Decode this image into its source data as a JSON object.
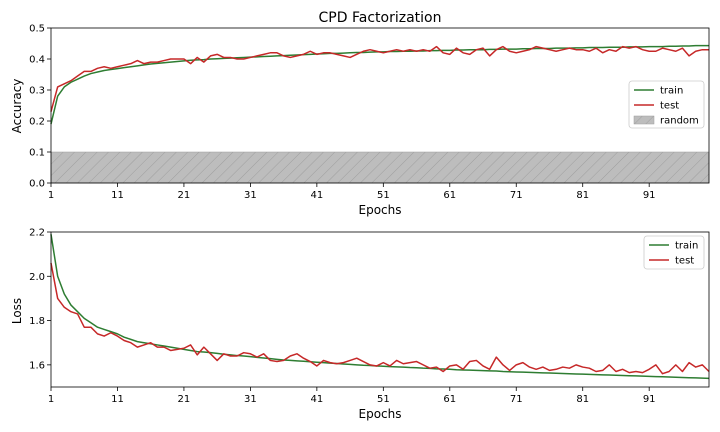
{
  "chart_data": [
    {
      "type": "line",
      "title": "CPD Factorization",
      "xlabel": "Epochs",
      "ylabel": "Accuracy",
      "xlim": [
        1,
        100
      ],
      "ylim": [
        0,
        0.5
      ],
      "xticks": [
        1,
        11,
        21,
        31,
        41,
        51,
        61,
        71,
        81,
        91
      ],
      "yticks": [
        0.0,
        0.1,
        0.2,
        0.3,
        0.4,
        0.5
      ],
      "ytick_labels": [
        "0.0",
        "0.1",
        "0.2",
        "0.3",
        "0.4",
        "0.5"
      ],
      "grid": false,
      "legend_position": "center-right",
      "x": [
        1,
        2,
        3,
        4,
        5,
        6,
        7,
        8,
        9,
        10,
        11,
        12,
        13,
        14,
        15,
        16,
        17,
        18,
        19,
        20,
        21,
        22,
        23,
        24,
        25,
        26,
        27,
        28,
        29,
        30,
        31,
        32,
        33,
        34,
        35,
        36,
        37,
        38,
        39,
        40,
        41,
        42,
        43,
        44,
        45,
        46,
        47,
        48,
        49,
        50,
        51,
        52,
        53,
        54,
        55,
        56,
        57,
        58,
        59,
        60,
        61,
        62,
        63,
        64,
        65,
        66,
        67,
        68,
        69,
        70,
        71,
        72,
        73,
        74,
        75,
        76,
        77,
        78,
        79,
        80,
        81,
        82,
        83,
        84,
        85,
        86,
        87,
        88,
        89,
        90,
        91,
        92,
        93,
        94,
        95,
        96,
        97,
        98,
        99,
        100
      ],
      "series": [
        {
          "name": "train",
          "color": "#2e7d32",
          "values": [
            0.19,
            0.28,
            0.31,
            0.325,
            0.335,
            0.345,
            0.353,
            0.358,
            0.363,
            0.366,
            0.369,
            0.372,
            0.375,
            0.378,
            0.381,
            0.384,
            0.386,
            0.388,
            0.39,
            0.392,
            0.394,
            0.396,
            0.397,
            0.398,
            0.4,
            0.401,
            0.402,
            0.403,
            0.404,
            0.405,
            0.406,
            0.407,
            0.408,
            0.409,
            0.41,
            0.411,
            0.412,
            0.413,
            0.414,
            0.415,
            0.416,
            0.417,
            0.418,
            0.418,
            0.419,
            0.42,
            0.421,
            0.421,
            0.422,
            0.423,
            0.423,
            0.424,
            0.424,
            0.425,
            0.425,
            0.426,
            0.426,
            0.427,
            0.427,
            0.428,
            0.428,
            0.429,
            0.429,
            0.43,
            0.43,
            0.43,
            0.431,
            0.431,
            0.432,
            0.432,
            0.432,
            0.433,
            0.433,
            0.434,
            0.434,
            0.434,
            0.435,
            0.435,
            0.435,
            0.436,
            0.436,
            0.437,
            0.437,
            0.437,
            0.438,
            0.438,
            0.438,
            0.439,
            0.439,
            0.439,
            0.44,
            0.44,
            0.44,
            0.441,
            0.441,
            0.442,
            0.442,
            0.443,
            0.443,
            0.443
          ]
        },
        {
          "name": "test",
          "color": "#c62828",
          "values": [
            0.23,
            0.31,
            0.32,
            0.33,
            0.345,
            0.36,
            0.36,
            0.37,
            0.375,
            0.37,
            0.375,
            0.38,
            0.385,
            0.395,
            0.385,
            0.39,
            0.39,
            0.395,
            0.4,
            0.4,
            0.4,
            0.385,
            0.405,
            0.39,
            0.41,
            0.415,
            0.405,
            0.405,
            0.4,
            0.4,
            0.405,
            0.41,
            0.415,
            0.42,
            0.42,
            0.41,
            0.405,
            0.41,
            0.415,
            0.425,
            0.415,
            0.42,
            0.42,
            0.415,
            0.41,
            0.405,
            0.415,
            0.425,
            0.43,
            0.425,
            0.42,
            0.425,
            0.43,
            0.425,
            0.43,
            0.425,
            0.43,
            0.425,
            0.44,
            0.42,
            0.415,
            0.435,
            0.42,
            0.415,
            0.43,
            0.435,
            0.41,
            0.43,
            0.44,
            0.425,
            0.42,
            0.425,
            0.43,
            0.44,
            0.435,
            0.43,
            0.425,
            0.43,
            0.435,
            0.43,
            0.43,
            0.425,
            0.435,
            0.42,
            0.43,
            0.425,
            0.44,
            0.435,
            0.44,
            0.43,
            0.425,
            0.425,
            0.435,
            0.43,
            0.425,
            0.435,
            0.41,
            0.425,
            0.43,
            0.43
          ]
        },
        {
          "name": "random",
          "type": "band",
          "color": "#bdbdbd",
          "range": [
            0.0,
            0.1
          ]
        }
      ]
    },
    {
      "type": "line",
      "title": "",
      "xlabel": "Epochs",
      "ylabel": "Loss",
      "xlim": [
        1,
        100
      ],
      "ylim": [
        1.5,
        2.2
      ],
      "xticks": [
        1,
        11,
        21,
        31,
        41,
        51,
        61,
        71,
        81,
        91
      ],
      "yticks": [
        1.6,
        1.8,
        2.0,
        2.2
      ],
      "ytick_labels": [
        "1.6",
        "1.8",
        "2.0",
        "2.2"
      ],
      "grid": false,
      "legend_position": "top-right",
      "x": [
        1,
        2,
        3,
        4,
        5,
        6,
        7,
        8,
        9,
        10,
        11,
        12,
        13,
        14,
        15,
        16,
        17,
        18,
        19,
        20,
        21,
        22,
        23,
        24,
        25,
        26,
        27,
        28,
        29,
        30,
        31,
        32,
        33,
        34,
        35,
        36,
        37,
        38,
        39,
        40,
        41,
        42,
        43,
        44,
        45,
        46,
        47,
        48,
        49,
        50,
        51,
        52,
        53,
        54,
        55,
        56,
        57,
        58,
        59,
        60,
        61,
        62,
        63,
        64,
        65,
        66,
        67,
        68,
        69,
        70,
        71,
        72,
        73,
        74,
        75,
        76,
        77,
        78,
        79,
        80,
        81,
        82,
        83,
        84,
        85,
        86,
        87,
        88,
        89,
        90,
        91,
        92,
        93,
        94,
        95,
        96,
        97,
        98,
        99,
        100
      ],
      "series": [
        {
          "name": "train",
          "color": "#2e7d32",
          "values": [
            2.19,
            2.0,
            1.92,
            1.87,
            1.84,
            1.81,
            1.79,
            1.77,
            1.76,
            1.75,
            1.74,
            1.725,
            1.715,
            1.705,
            1.7,
            1.695,
            1.69,
            1.685,
            1.68,
            1.675,
            1.67,
            1.665,
            1.66,
            1.658,
            1.655,
            1.652,
            1.648,
            1.645,
            1.642,
            1.64,
            1.637,
            1.634,
            1.631,
            1.628,
            1.625,
            1.622,
            1.62,
            1.618,
            1.616,
            1.614,
            1.612,
            1.61,
            1.608,
            1.606,
            1.604,
            1.602,
            1.6,
            1.598,
            1.597,
            1.595,
            1.594,
            1.592,
            1.591,
            1.59,
            1.588,
            1.587,
            1.585,
            1.584,
            1.582,
            1.581,
            1.58,
            1.578,
            1.577,
            1.576,
            1.575,
            1.574,
            1.573,
            1.572,
            1.57,
            1.569,
            1.568,
            1.567,
            1.566,
            1.565,
            1.564,
            1.563,
            1.562,
            1.561,
            1.56,
            1.559,
            1.558,
            1.557,
            1.556,
            1.555,
            1.554,
            1.553,
            1.552,
            1.551,
            1.55,
            1.549,
            1.548,
            1.547,
            1.546,
            1.545,
            1.544,
            1.543,
            1.542,
            1.541,
            1.54,
            1.539
          ]
        },
        {
          "name": "test",
          "color": "#c62828",
          "values": [
            2.06,
            1.9,
            1.86,
            1.84,
            1.83,
            1.77,
            1.77,
            1.74,
            1.73,
            1.745,
            1.73,
            1.71,
            1.7,
            1.68,
            1.69,
            1.7,
            1.68,
            1.68,
            1.665,
            1.67,
            1.675,
            1.69,
            1.645,
            1.68,
            1.65,
            1.62,
            1.65,
            1.64,
            1.64,
            1.655,
            1.65,
            1.635,
            1.65,
            1.62,
            1.615,
            1.62,
            1.64,
            1.65,
            1.63,
            1.615,
            1.595,
            1.62,
            1.61,
            1.605,
            1.61,
            1.62,
            1.63,
            1.615,
            1.6,
            1.595,
            1.61,
            1.595,
            1.62,
            1.605,
            1.61,
            1.615,
            1.6,
            1.585,
            1.59,
            1.57,
            1.595,
            1.6,
            1.58,
            1.615,
            1.62,
            1.595,
            1.58,
            1.635,
            1.6,
            1.575,
            1.6,
            1.61,
            1.59,
            1.58,
            1.59,
            1.575,
            1.58,
            1.59,
            1.585,
            1.6,
            1.59,
            1.585,
            1.57,
            1.575,
            1.6,
            1.57,
            1.58,
            1.565,
            1.57,
            1.565,
            1.58,
            1.6,
            1.56,
            1.57,
            1.6,
            1.57,
            1.61,
            1.59,
            1.6,
            1.57
          ]
        }
      ]
    }
  ]
}
